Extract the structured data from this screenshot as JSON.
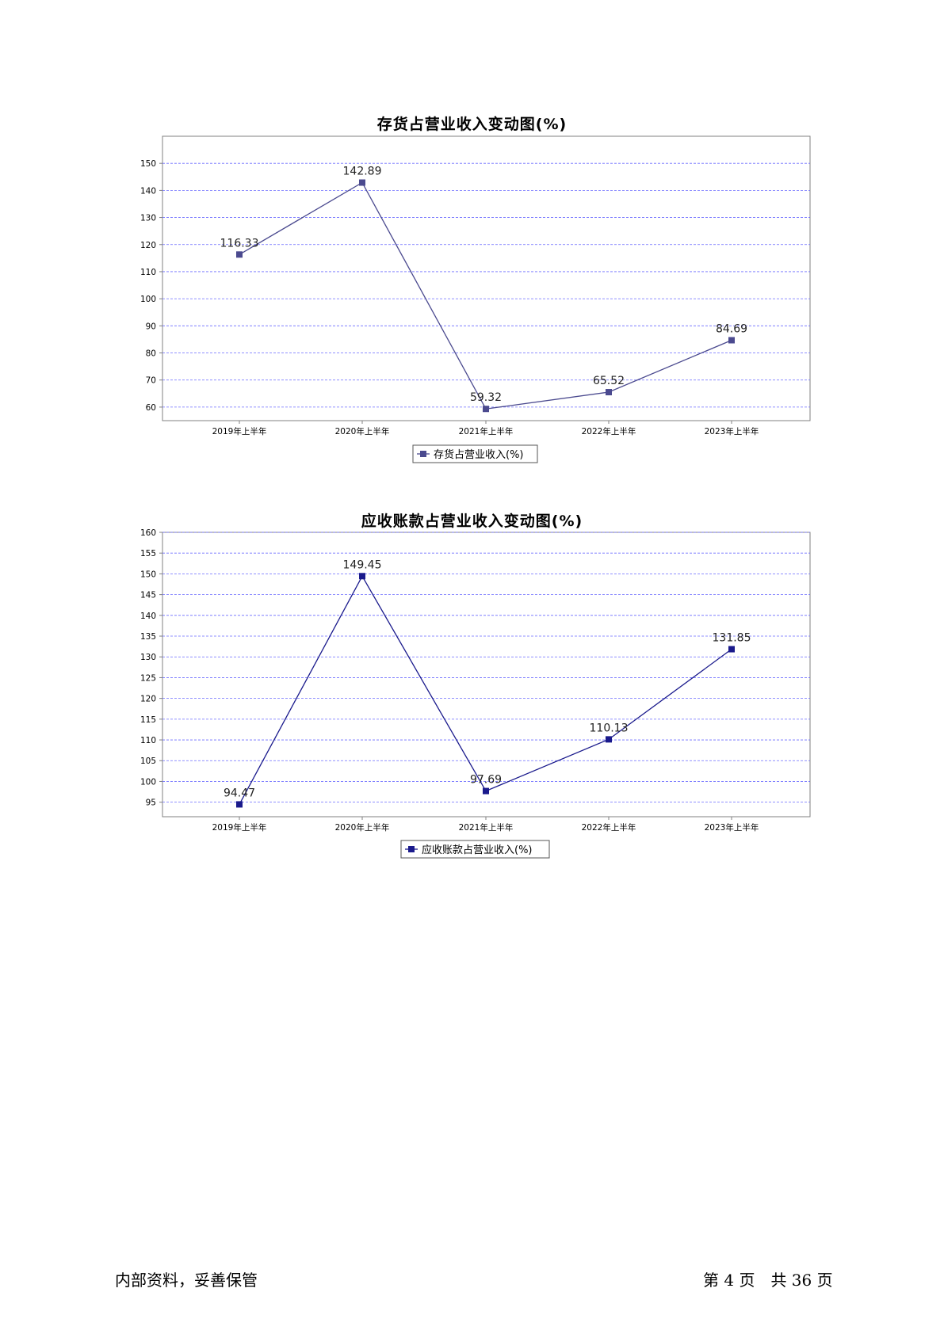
{
  "chart_data": [
    {
      "type": "line",
      "title": "存货占营业收入变动图(%)",
      "categories": [
        "2019年上半年",
        "2020年上半年",
        "2021年上半年",
        "2022年上半年",
        "2023年上半年"
      ],
      "series": [
        {
          "name": "存货占营业收入(%)",
          "values": [
            116.33,
            142.89,
            59.32,
            65.52,
            84.69
          ],
          "color": "#4b4a8f"
        }
      ],
      "value_labels": [
        "116.33",
        "142.89",
        "59.32",
        "65.52",
        "84.69"
      ],
      "ylim": [
        55,
        160
      ],
      "yticks": [
        60,
        70,
        80,
        90,
        100,
        110,
        120,
        130,
        140,
        150
      ],
      "grid": true,
      "legend": "bottom-center"
    },
    {
      "type": "line",
      "title": "应收账款占营业收入变动图(%)",
      "categories": [
        "2019年上半年",
        "2020年上半年",
        "2021年上半年",
        "2022年上半年",
        "2023年上半年"
      ],
      "series": [
        {
          "name": "应收账款占营业收入(%)",
          "values": [
            94.47,
            149.45,
            97.69,
            110.13,
            131.85
          ],
          "color": "#1a1a8c"
        }
      ],
      "value_labels": [
        "94.47",
        "149.45",
        "97.69",
        "110.13",
        "131.85"
      ],
      "ylim": [
        91.5,
        160
      ],
      "yticks": [
        95,
        100,
        105,
        110,
        115,
        120,
        125,
        130,
        135,
        140,
        145,
        150,
        155,
        160
      ],
      "grid": true,
      "legend": "bottom-center"
    }
  ],
  "footer": {
    "left": "内部资料，妥善保管",
    "right": "第 4 页　共 36 页"
  },
  "colors": {
    "grid": "#6b6bff",
    "axis_text": "#000000"
  }
}
